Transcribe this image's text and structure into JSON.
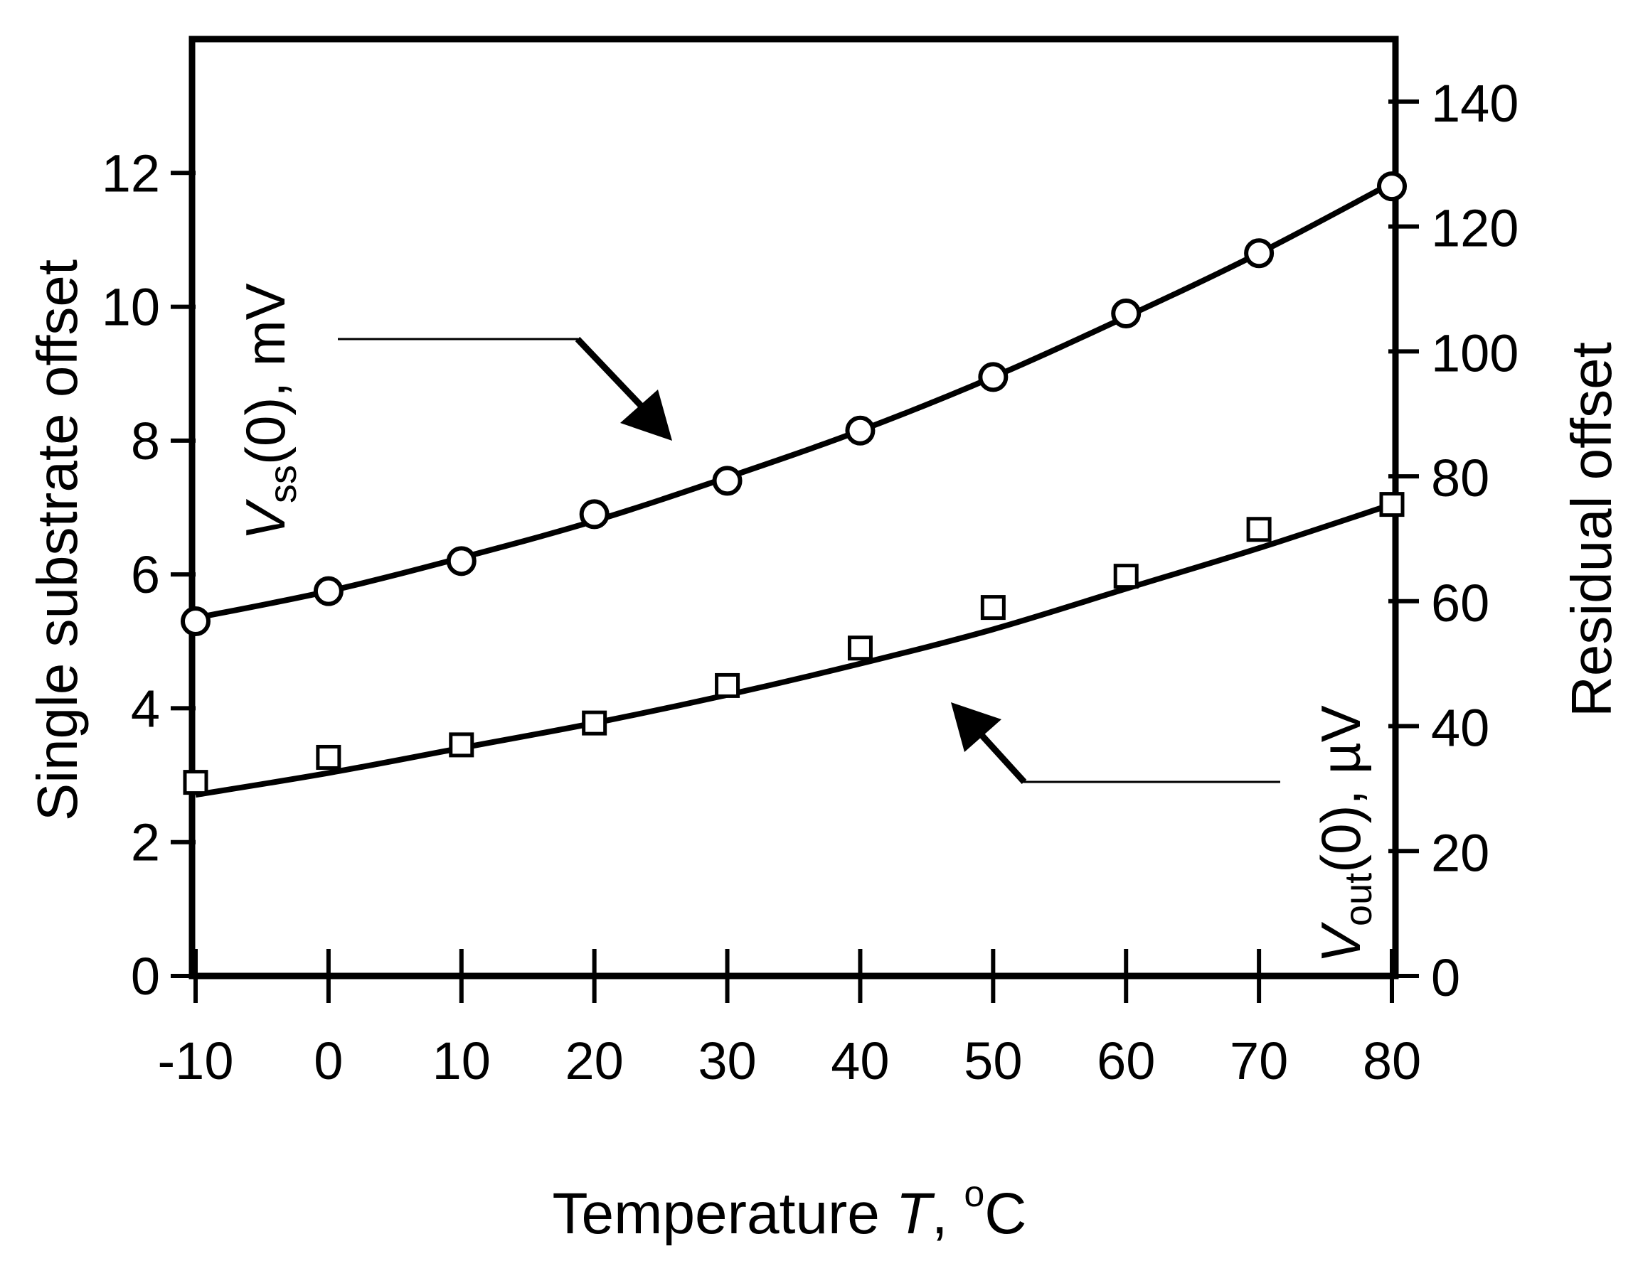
{
  "chart_data": {
    "type": "line",
    "title": "",
    "x": [
      -10,
      0,
      10,
      20,
      30,
      40,
      50,
      60,
      70,
      80
    ],
    "xlabel": {
      "prefix": "Temperature ",
      "italic": "T",
      "suffix": ", ",
      "degree": "o",
      "unit": "C"
    },
    "xlim": [
      -10,
      80
    ],
    "x_ticks": [
      "-10",
      "0",
      "10",
      "20",
      "30",
      "40",
      "50",
      "60",
      "70",
      "80"
    ],
    "ylabel_left": "Single substrate offset",
    "ylim_left": [
      0,
      14
    ],
    "y_ticks_left": [
      "0",
      "2",
      "4",
      "6",
      "8",
      "10",
      "12"
    ],
    "ylabel_right": "Residual offset",
    "ylim_right": [
      0,
      150
    ],
    "y_ticks_right": [
      "0",
      "20",
      "40",
      "60",
      "80",
      "100",
      "120",
      "140"
    ],
    "grid": false,
    "series": [
      {
        "name": "Vss(0), mV",
        "label_main": "V",
        "label_sub": "ss",
        "label_rest": "(0), mV",
        "axis": "left",
        "marker": "circle",
        "values": [
          5.3,
          5.75,
          6.2,
          6.9,
          7.4,
          8.15,
          8.95,
          9.9,
          10.8,
          11.8
        ],
        "fit": [
          5.35,
          5.75,
          6.25,
          6.8,
          7.45,
          8.15,
          8.95,
          9.85,
          10.8,
          11.85
        ]
      },
      {
        "name": "Vout(0), µV",
        "label_main": "V",
        "label_sub": "out",
        "label_rest": "(0), µV",
        "axis": "right",
        "marker": "square",
        "values": [
          31,
          35,
          37,
          40.5,
          46.5,
          52.5,
          59,
          64,
          71.5,
          75.5
        ],
        "fit": [
          29,
          32.5,
          36.5,
          40.5,
          45,
          50,
          55.5,
          62,
          68.5,
          75.5
        ]
      }
    ]
  }
}
